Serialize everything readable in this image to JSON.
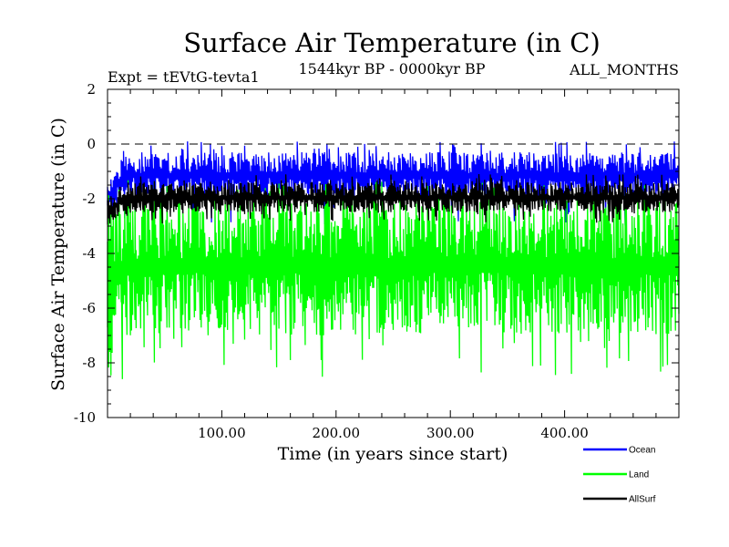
{
  "chart_data": {
    "type": "line",
    "title": "Surface Air Temperature (in C)",
    "subtitle_left": "Expt = tEVtG-tevta1",
    "subtitle_center": "1544kyr BP - 0000kyr BP",
    "subtitle_right": "ALL_MONTHS",
    "xlabel": "Time (in years since start)",
    "ylabel": "Surface Air Temperature (in C)",
    "xlim": [
      0,
      500
    ],
    "ylim": [
      -10,
      2
    ],
    "x_ticks": [
      {
        "value": 100,
        "label": "100.00"
      },
      {
        "value": 200,
        "label": "200.00"
      },
      {
        "value": 300,
        "label": "300.00"
      },
      {
        "value": 400,
        "label": "400.00"
      }
    ],
    "y_ticks": [
      {
        "value": 2,
        "label": "2"
      },
      {
        "value": 0,
        "label": "0"
      },
      {
        "value": -2,
        "label": "-2"
      },
      {
        "value": -4,
        "label": "-4"
      },
      {
        "value": -6,
        "label": "-6"
      },
      {
        "value": -8,
        "label": "-8"
      },
      {
        "value": -10,
        "label": "-10"
      }
    ],
    "reference_line": {
      "y": 0,
      "style": "dashed"
    },
    "legend_position": "below-right",
    "series": [
      {
        "name": "Ocean",
        "color": "#0000ff",
        "low": -2.0,
        "high": -0.3,
        "spike_min": -3.0,
        "spike_max": 0.1,
        "start_low": -2.6,
        "start_high": -1.4
      },
      {
        "name": "Land",
        "color": "#00ff00",
        "low": -7.0,
        "high": -1.9,
        "spike_min": -8.6,
        "spike_max": -1.3,
        "start_low": -8.5,
        "start_high": -2.5
      },
      {
        "name": "AllSurf",
        "color": "#000000",
        "low": -2.5,
        "high": -1.4,
        "spike_min": -2.9,
        "spike_max": -1.1,
        "start_low": -3.0,
        "start_high": -2.0
      }
    ]
  }
}
